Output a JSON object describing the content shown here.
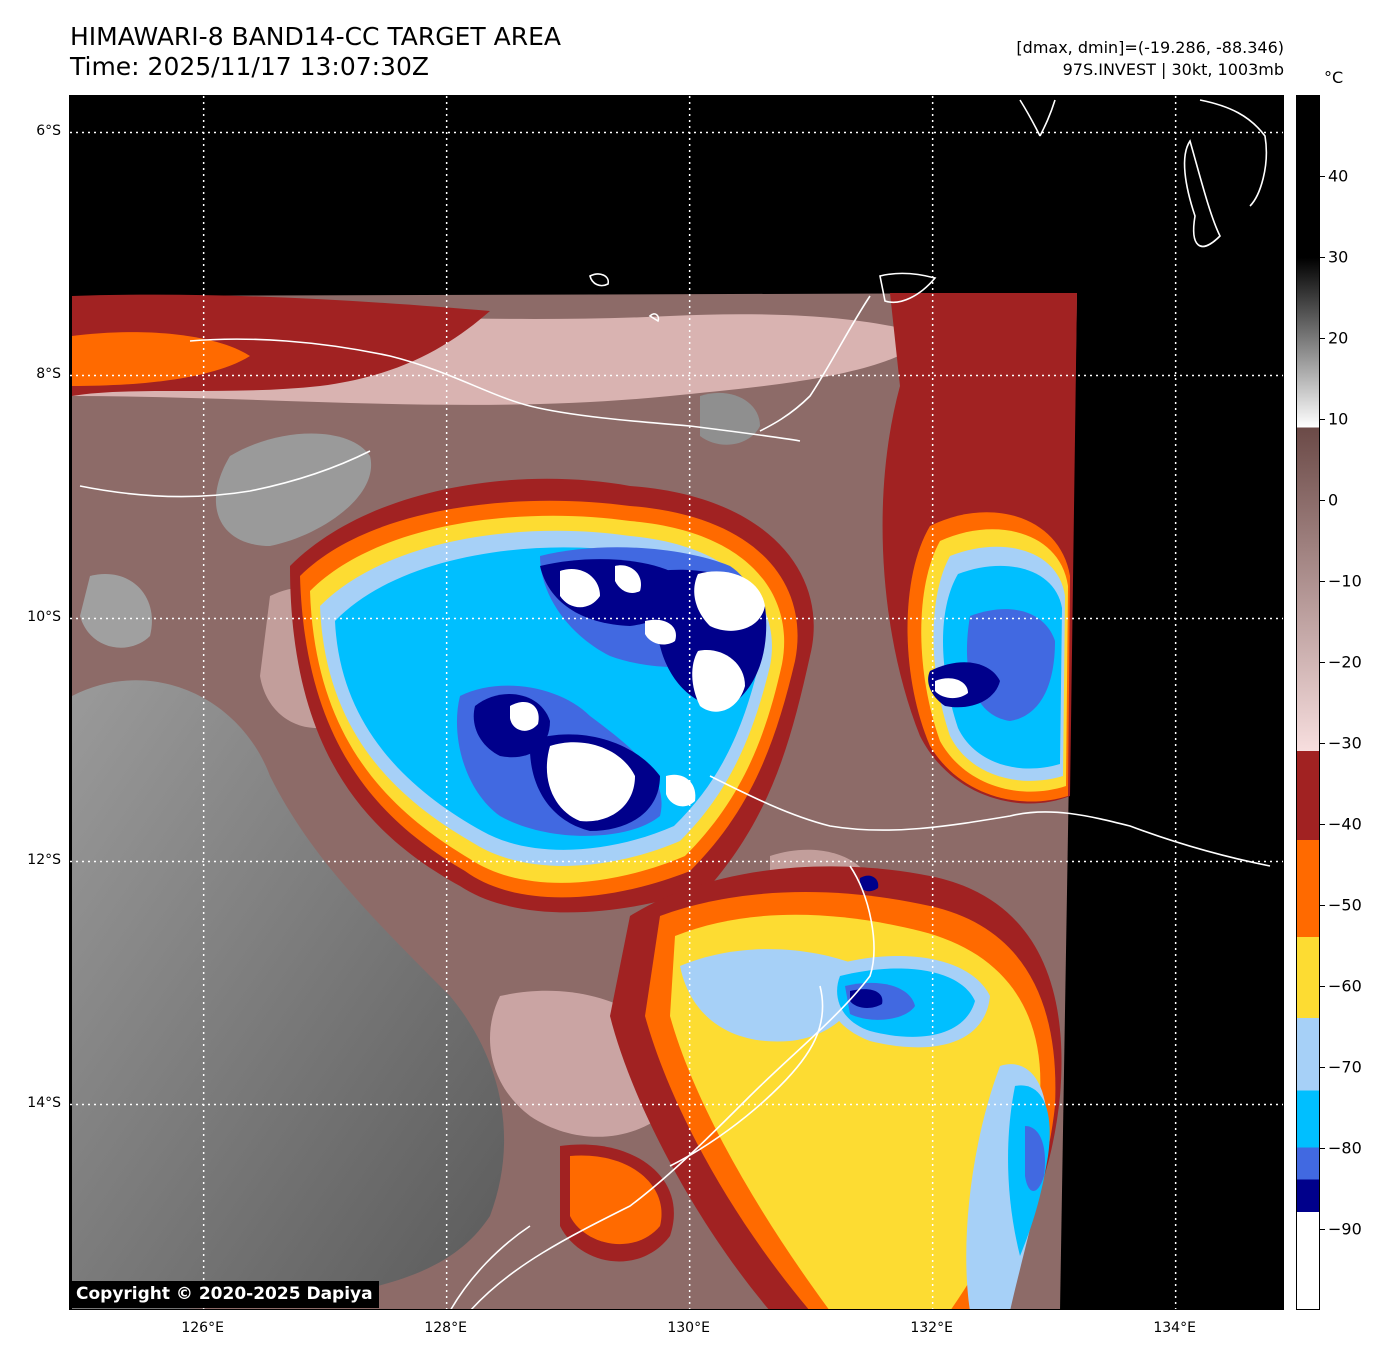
{
  "header": {
    "title_line1": "HIMAWARI-8 BAND14-CC TARGET AREA",
    "title_line2": "Time: 2025/11/17 13:07:30Z",
    "stats_line1": "[dmax, dmin]=(-19.286, -88.346)",
    "stats_line2": "97S.INVEST | 30kt, 1003mb"
  },
  "colorbar": {
    "unit": "°C",
    "range": [
      -100,
      50
    ],
    "labels": [
      "40",
      "30",
      "20",
      "10",
      "0",
      "−10",
      "−20",
      "−30",
      "−40",
      "−50",
      "−60",
      "−70",
      "−80",
      "−90"
    ],
    "label_values": [
      40,
      30,
      20,
      10,
      0,
      -10,
      -20,
      -30,
      -40,
      -50,
      -60,
      -70,
      -80,
      -90
    ],
    "bands": [
      {
        "from": 50,
        "to": 30,
        "color": "#000000"
      },
      {
        "from": 30,
        "to": 9,
        "gradient": [
          "#000000",
          "#ffffff"
        ]
      },
      {
        "from": 9,
        "to": -31,
        "gradient": [
          "#6b4a47",
          "#f7dede"
        ]
      },
      {
        "from": -31,
        "to": -42,
        "color": "#a12222"
      },
      {
        "from": -42,
        "to": -54,
        "color": "#ff6a00"
      },
      {
        "from": -54,
        "to": -64,
        "color": "#fddc32"
      },
      {
        "from": -64,
        "to": -73,
        "color": "#a6d0f7"
      },
      {
        "from": -73,
        "to": -80,
        "color": "#00bfff"
      },
      {
        "from": -80,
        "to": -84,
        "color": "#4169e1"
      },
      {
        "from": -84,
        "to": -88,
        "color": "#00008b"
      },
      {
        "from": -88,
        "to": -100,
        "color": "#ffffff"
      }
    ]
  },
  "map": {
    "lon_range": [
      124.9,
      134.9
    ],
    "lat_range": [
      -15.7,
      -5.7
    ],
    "lat_labels": [
      {
        "value": -6,
        "text": "6°S"
      },
      {
        "value": -8,
        "text": "8°S"
      },
      {
        "value": -10,
        "text": "10°S"
      },
      {
        "value": -12,
        "text": "12°S"
      },
      {
        "value": -14,
        "text": "14°S"
      }
    ],
    "lon_labels": [
      {
        "value": 126,
        "text": "126°E"
      },
      {
        "value": 128,
        "text": "128°E"
      },
      {
        "value": 130,
        "text": "130°E"
      },
      {
        "value": 132,
        "text": "132°E"
      },
      {
        "value": 134,
        "text": "134°E"
      }
    ],
    "gridline_style": "dotted white",
    "no_data_color": "#000000",
    "coastline_color": "#ffffff"
  },
  "copyright": "Copyright © 2020-2025 Dapiya"
}
